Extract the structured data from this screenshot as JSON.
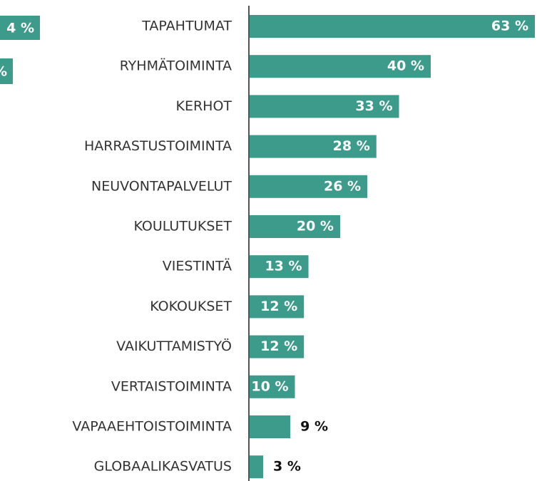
{
  "chart_data": {
    "type": "barh",
    "categories": [
      "TAPAHTUMAT",
      "RYHMÄTOIMINTA",
      "KERHOT",
      "HARRASTUSTOIMINTA",
      "NEUVONTAPALVELUT",
      "KOULUTUKSET",
      "VIESTINTÄ",
      "KOKOUKSET",
      "VAIKUTTAMISTYÖ",
      "VERTAISTOIMINTA",
      "VAPAAEHTOISTOIMINTA",
      "GLOBAALIKASVATUS"
    ],
    "values": [
      63,
      40,
      33,
      28,
      26,
      20,
      13,
      12,
      12,
      10,
      9,
      3
    ],
    "value_labels": [
      "63 %",
      "40 %",
      "33 %",
      "28 %",
      "26 %",
      "20 %",
      "13 %",
      "12 %",
      "12 %",
      "10 %",
      "9 %",
      "3 %"
    ],
    "color": "#3d9b8b",
    "xlim": [
      0,
      63
    ]
  },
  "cropped_labels": [
    "4 %",
    "%"
  ]
}
